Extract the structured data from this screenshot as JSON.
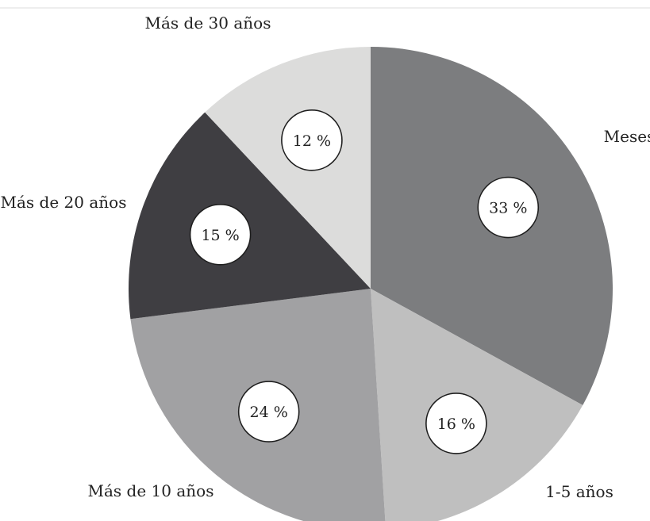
{
  "chart_data": {
    "type": "pie",
    "title": "",
    "start_angle_deg": 0,
    "direction": "clockwise",
    "slices": [
      {
        "label": "Meses",
        "value": 33,
        "value_label": "33 %",
        "color": "#7c7d7f"
      },
      {
        "label": "1-5 años",
        "value": 16,
        "value_label": "16 %",
        "color": "#bfbfbf"
      },
      {
        "label": "Más de 10 años",
        "value": 24,
        "value_label": "24 %",
        "color": "#a1a1a3"
      },
      {
        "label": "Más de 20 años",
        "value": 15,
        "value_label": "15 %",
        "color": "#3f3e42"
      },
      {
        "label": "Más de 30 años",
        "value": 12,
        "value_label": "12 %",
        "color": "#dcdcdb"
      }
    ]
  }
}
